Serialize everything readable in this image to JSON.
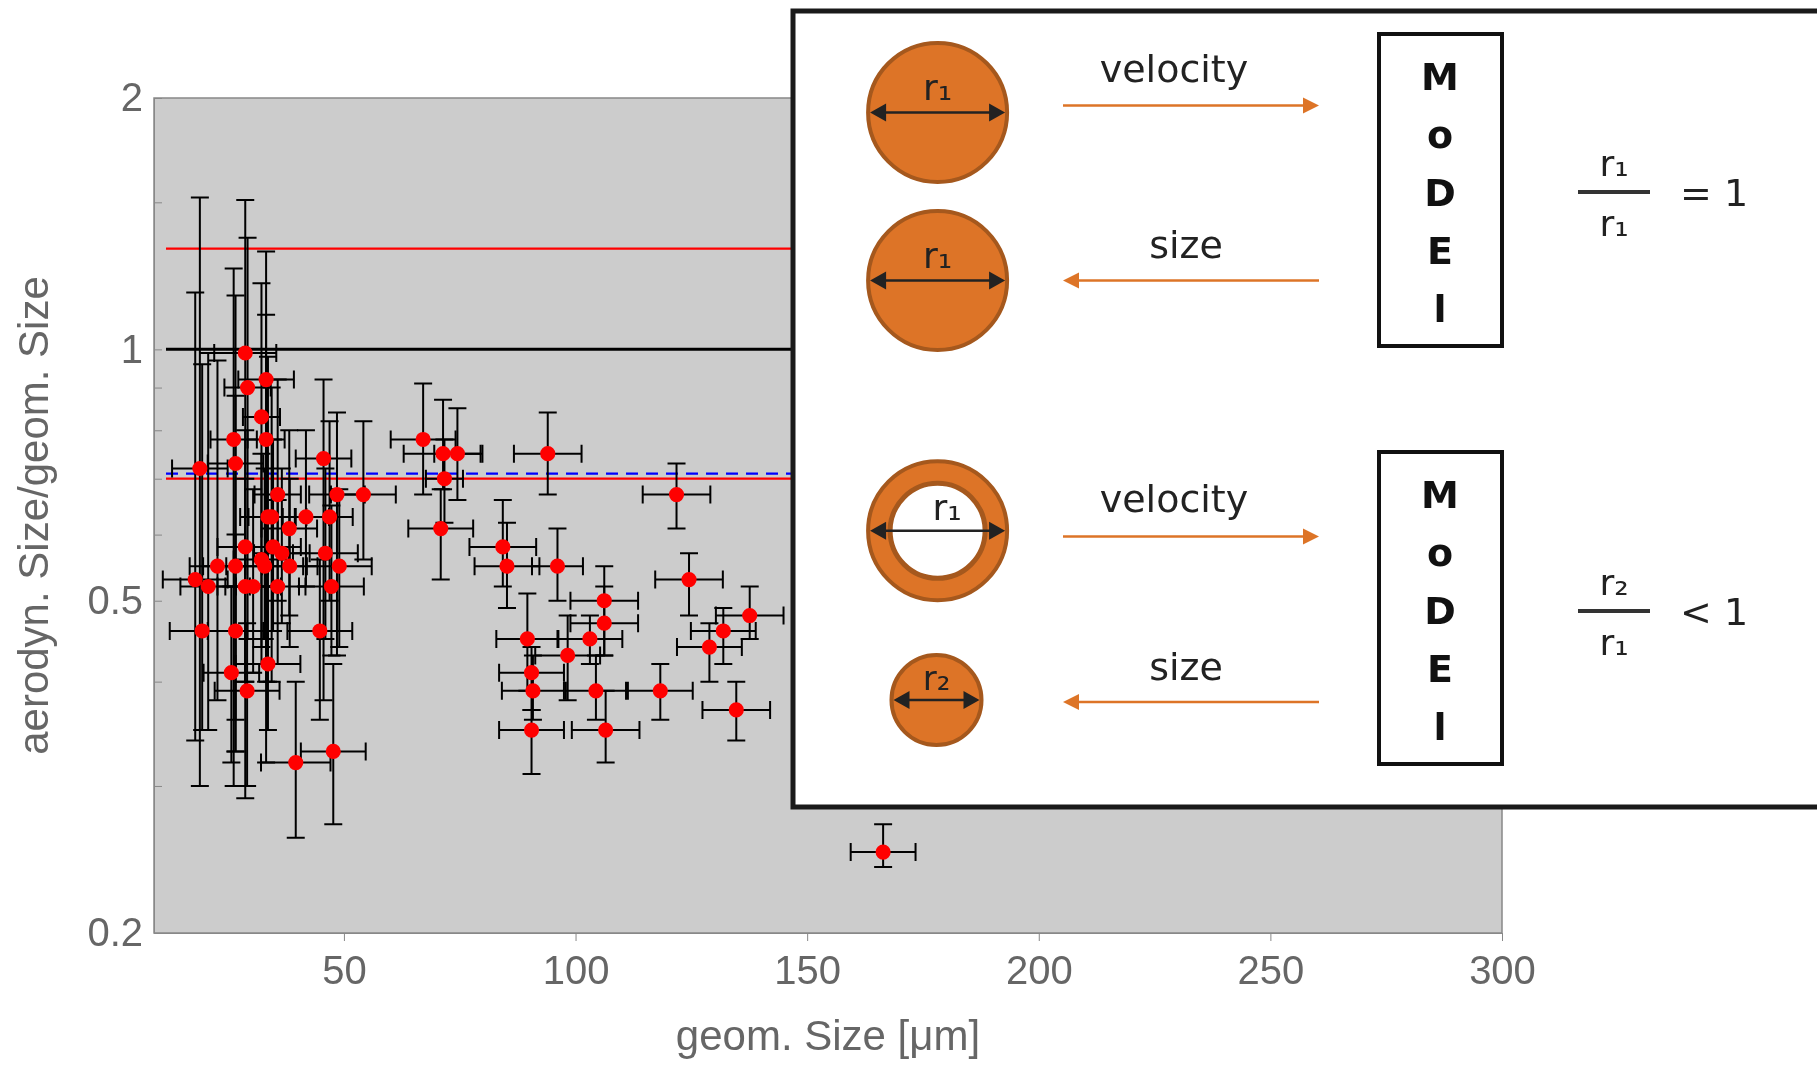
{
  "chart_data": {
    "type": "scatter",
    "xlabel": "geom. Size [μm]",
    "ylabel": "aerodyn. Size/geom. Size",
    "xlim": [
      9,
      300
    ],
    "xticks": [
      50,
      100,
      150,
      200,
      250,
      300
    ],
    "ylim": [
      0.2,
      2
    ],
    "log": "y",
    "yticks": [
      0.2,
      {
        "value": 0.3,
        "label": null
      },
      {
        "value": 0.4,
        "label": null
      },
      0.5,
      {
        "value": 0.6,
        "label": null
      },
      {
        "value": 0.7,
        "label": null
      },
      {
        "value": 0.8,
        "label": null
      },
      {
        "value": 0.9,
        "label": null
      },
      1,
      {
        "value": 1.5,
        "label": null
      },
      2
    ],
    "grid": false,
    "marker": "circle",
    "ref_lines": [
      {
        "axis": "y",
        "value": 1.32,
        "color": "#ff0000",
        "line_style": "solid"
      },
      {
        "axis": "y",
        "value": 1,
        "color": "#000000",
        "line_style": "solid"
      },
      {
        "axis": "y",
        "value": 0.71,
        "color": "#0000ff",
        "line_style": "dashed"
      },
      {
        "axis": "y",
        "value": 0.7,
        "color": "#ff0000",
        "line_style": "solid"
      }
    ],
    "series": [
      {
        "color": "#ff0000",
        "x": [
          28.7,
          33.2,
          29.2,
          32.2,
          26.2,
          33.2,
          26.6,
          18.9,
          45.6,
          35.7,
          48.5,
          54.2,
          33.6,
          34.4,
          41.8,
          46.9,
          38.2,
          28.7,
          34.7,
          36.6,
          46.0,
          22.7,
          26.6,
          32.2,
          32.9,
          38.3,
          49.0,
          17.9,
          20.7,
          28.7,
          30.4,
          35.7,
          47.3,
          19.4,
          26.6,
          44.8,
          25.7,
          33.6,
          29.1,
          39.6,
          47.7,
          67.1,
          71.4,
          74.5,
          71.7,
          70.9,
          94.0,
          121.8,
          84.3,
          85.2,
          96.1,
          106.2,
          106.2,
          89.6,
          103.1,
          98.3,
          90.5,
          90.8,
          104.4,
          118.3,
          90.5,
          106.5,
          124.5,
          137.6,
          131.9,
          128.9,
          134.7,
          166.4
        ],
        "values": [
          0.99,
          0.92,
          0.9,
          0.83,
          0.78,
          0.78,
          0.73,
          0.72,
          0.74,
          0.67,
          0.67,
          0.67,
          0.63,
          0.63,
          0.63,
          0.63,
          0.61,
          0.58,
          0.58,
          0.57,
          0.57,
          0.55,
          0.55,
          0.56,
          0.55,
          0.55,
          0.55,
          0.53,
          0.52,
          0.52,
          0.52,
          0.52,
          0.52,
          0.46,
          0.46,
          0.46,
          0.41,
          0.42,
          0.39,
          0.32,
          0.33,
          0.78,
          0.75,
          0.75,
          0.7,
          0.61,
          0.75,
          0.67,
          0.58,
          0.55,
          0.55,
          0.5,
          0.47,
          0.45,
          0.45,
          0.43,
          0.41,
          0.39,
          0.39,
          0.39,
          0.35,
          0.35,
          0.53,
          0.48,
          0.46,
          0.44,
          0.37,
          0.25
        ],
        "errors": [
          [
            0.29,
            1.51
          ],
          [
            0.32,
            1.31
          ],
          [
            0.45,
            1.36
          ],
          [
            0.42,
            1.2
          ],
          [
            0.3,
            1.25
          ],
          [
            0.4,
            1.1
          ],
          [
            0.33,
            1.16
          ],
          [
            0.3,
            1.52
          ],
          [
            0.38,
            0.92
          ],
          [
            0.5,
            0.92
          ],
          [
            0.43,
            0.84
          ],
          [
            0.56,
            0.82
          ],
          [
            0.4,
            0.98
          ],
          [
            0.4,
            0.9
          ],
          [
            0.52,
            0.8
          ],
          [
            0.5,
            0.82
          ],
          [
            0.48,
            0.8
          ],
          [
            0.4,
            0.8
          ],
          [
            0.46,
            0.78
          ],
          [
            0.47,
            0.72
          ],
          [
            0.45,
            0.72
          ],
          [
            0.38,
            0.97
          ],
          [
            0.33,
            0.88
          ],
          [
            0.44,
            0.75
          ],
          [
            0.45,
            0.72
          ],
          [
            0.44,
            0.7
          ],
          [
            0.44,
            0.68
          ],
          [
            0.34,
            1.17
          ],
          [
            0.35,
            0.99
          ],
          [
            0.4,
            0.7
          ],
          [
            0.41,
            0.68
          ],
          [
            0.42,
            0.66
          ],
          [
            0.43,
            0.65
          ],
          [
            0.35,
            0.96
          ],
          [
            0.36,
            0.6
          ],
          [
            0.36,
            0.56
          ],
          [
            0.32,
            0.52
          ],
          [
            0.35,
            0.52
          ],
          [
            0.3,
            0.47
          ],
          [
            0.26,
            0.4
          ],
          [
            0.27,
            0.42
          ],
          [
            0.67,
            0.91
          ],
          [
            0.68,
            0.87
          ],
          [
            0.66,
            0.85
          ],
          [
            0.62,
            0.78
          ],
          [
            0.53,
            0.68
          ],
          [
            0.67,
            0.84
          ],
          [
            0.61,
            0.73
          ],
          [
            0.52,
            0.66
          ],
          [
            0.49,
            0.62
          ],
          [
            0.5,
            0.61
          ],
          [
            0.43,
            0.55
          ],
          [
            0.43,
            0.52
          ],
          [
            0.39,
            0.51
          ],
          [
            0.42,
            0.48
          ],
          [
            0.38,
            0.48
          ],
          [
            0.37,
            0.44
          ],
          [
            0.36,
            0.43
          ],
          [
            0.36,
            0.43
          ],
          [
            0.36,
            0.42
          ],
          [
            0.31,
            0.37
          ],
          [
            0.32,
            0.39
          ],
          [
            0.48,
            0.57
          ],
          [
            0.45,
            0.52
          ],
          [
            0.42,
            0.49
          ],
          [
            0.4,
            0.47
          ],
          [
            0.34,
            0.4
          ],
          [
            0.24,
            0.27
          ]
        ],
        "xerrors": [
          6.7,
          6,
          5,
          4,
          5,
          4,
          6,
          6,
          6,
          5,
          6,
          7,
          6,
          5,
          5,
          5,
          6,
          6,
          6,
          6,
          7,
          6,
          7,
          6,
          8.3,
          6,
          7,
          7,
          6,
          6,
          6,
          6,
          7,
          7,
          6,
          7,
          6,
          7,
          7,
          7.5,
          7,
          7,
          8.5,
          5,
          4,
          7,
          7.3,
          7.3,
          7.2,
          7,
          5.5,
          7.3,
          7.3,
          6.7,
          7,
          7,
          7,
          6.7,
          6.5,
          7,
          7,
          7.3,
          7.3,
          7.3,
          7,
          7,
          7.3,
          7
        ]
      }
    ],
    "annotations": [
      "r₁",
      "velocity",
      "MoDEl",
      "r₁",
      "r₁",
      "= 1",
      "r₁",
      "size",
      "r₁",
      "velocity",
      "MoDEl",
      "r₂",
      "r₁",
      "< 1",
      "r₂",
      "size"
    ]
  }
}
